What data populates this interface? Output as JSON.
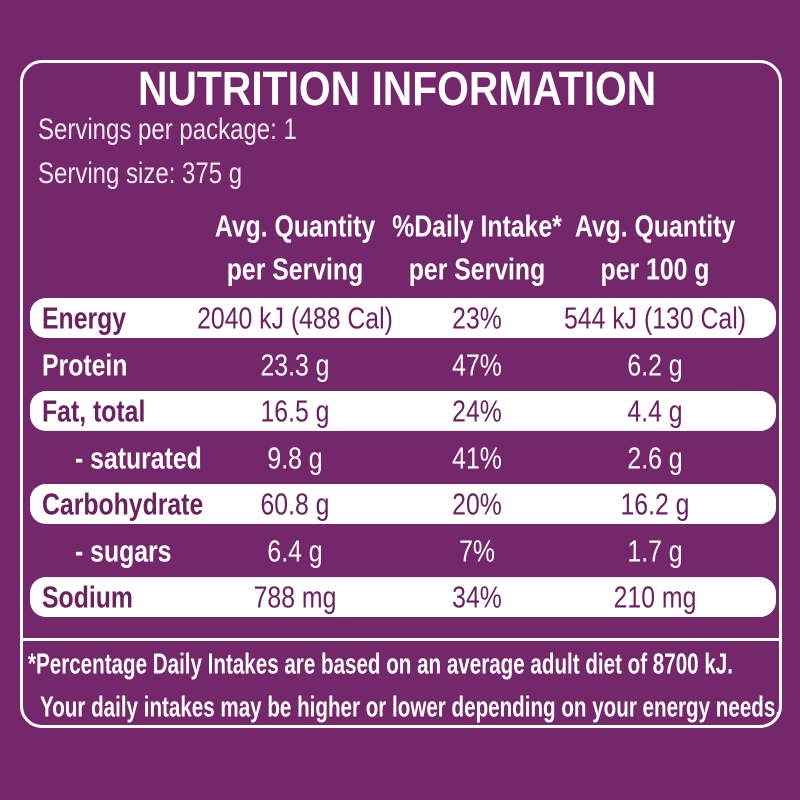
{
  "header": {
    "title": "NUTRITION INFORMATION",
    "servings_per_package": "Servings per package: 1",
    "serving_size": "Serving size: 375 g"
  },
  "table": {
    "columns": [
      [
        "Avg. Quantity",
        "per Serving"
      ],
      [
        "%Daily Intake*",
        "per Serving"
      ],
      [
        "Avg. Quantity",
        "per 100 g"
      ]
    ],
    "rows": [
      [
        "Energy",
        "2040 kJ (488 Cal)",
        "23%",
        "544 kJ (130 Cal)"
      ],
      [
        "Protein",
        "23.3 g",
        "47%",
        "6.2 g"
      ],
      [
        "Fat, total",
        "16.5 g",
        "24%",
        "4.4 g"
      ],
      [
        "- saturated",
        "9.8 g",
        "41%",
        "2.6 g"
      ],
      [
        "Carbohydrate",
        "60.8 g",
        "20%",
        "16.2 g"
      ],
      [
        "- sugars",
        "6.4 g",
        "7%",
        "1.7 g"
      ],
      [
        "Sodium",
        "788 mg",
        "34%",
        "210 mg"
      ]
    ]
  },
  "footer": [
    "*Percentage Daily Intakes are based on an average adult diet of 8700 kJ.",
    "Your daily intakes may be higher or lower depending on your energy needs."
  ]
}
